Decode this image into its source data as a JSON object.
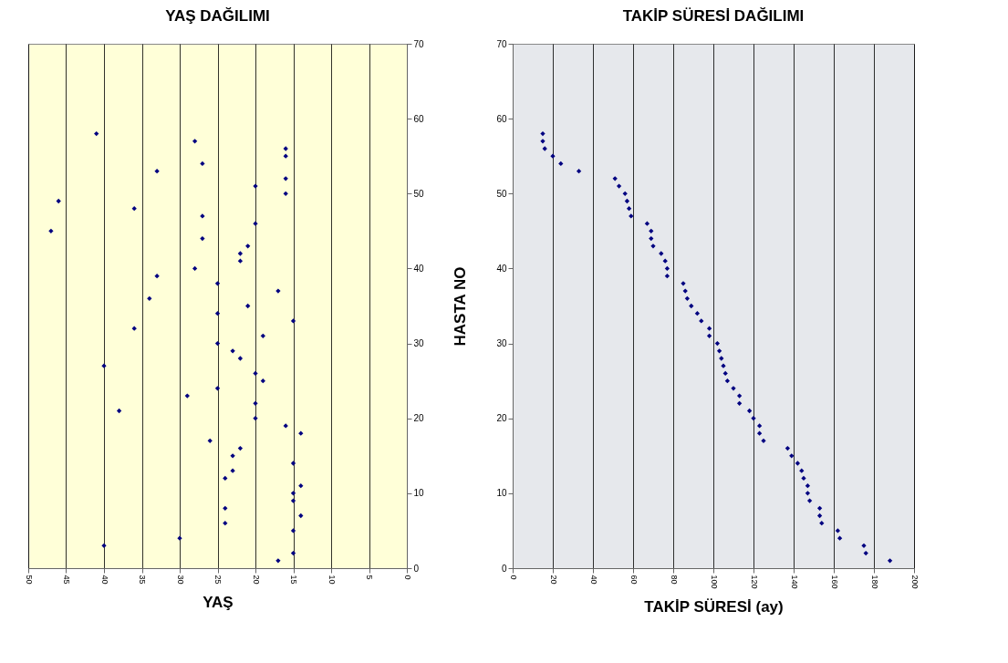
{
  "chart_data": [
    {
      "type": "scatter",
      "title": "YAŞ DAĞILIMI",
      "xlabel": "YAŞ",
      "color": "#000080",
      "marker": "diamond",
      "grid": "x",
      "x": [
        17,
        15,
        40,
        30,
        15,
        24,
        14,
        24,
        15,
        15,
        14,
        24,
        23,
        15,
        23,
        22,
        26,
        14,
        16,
        20,
        38,
        20,
        29,
        25,
        19,
        20,
        40,
        22,
        23,
        25,
        19,
        36,
        15,
        25,
        21,
        34,
        17,
        25,
        33,
        28,
        22,
        22,
        21,
        27,
        47,
        20,
        27,
        36,
        46,
        16,
        20,
        16,
        33,
        27,
        16,
        16,
        28,
        41
      ],
      "values": [
        1,
        2,
        3,
        4,
        5,
        6,
        7,
        8,
        9,
        10,
        11,
        12,
        13,
        14,
        15,
        16,
        17,
        18,
        19,
        20,
        21,
        22,
        23,
        24,
        25,
        26,
        27,
        28,
        29,
        30,
        31,
        32,
        33,
        34,
        35,
        36,
        37,
        38,
        39,
        40,
        41,
        42,
        43,
        44,
        45,
        46,
        47,
        48,
        49,
        50,
        51,
        52,
        53,
        54,
        55,
        56,
        57,
        58
      ],
      "xlim": [
        50,
        0
      ],
      "xticks": [
        50,
        45,
        40,
        35,
        30,
        25,
        20,
        15,
        10,
        5,
        0
      ],
      "ylim": [
        0,
        70
      ],
      "yticks": [
        0,
        10,
        20,
        30,
        40,
        50,
        60,
        70
      ]
    },
    {
      "type": "scatter",
      "title": "TAKİP SÜRESİ DAĞILIMI",
      "xlabel": "TAKİP SÜRESİ (ay)",
      "ylabel": "HASTA NO",
      "color": "#000080",
      "marker": "diamond",
      "grid": "x",
      "x": [
        188,
        176,
        175,
        163,
        162,
        154,
        153,
        153,
        148,
        147,
        147,
        145,
        144,
        142,
        139,
        137,
        125,
        123,
        123,
        120,
        118,
        113,
        113,
        110,
        107,
        106,
        105,
        104,
        103,
        102,
        98,
        98,
        94,
        92,
        89,
        87,
        86,
        85,
        77,
        77,
        76,
        74,
        70,
        69,
        69,
        67,
        59,
        58,
        57,
        56,
        53,
        51,
        33,
        24,
        20,
        16,
        15,
        15
      ],
      "values": [
        1,
        2,
        3,
        4,
        5,
        6,
        7,
        8,
        9,
        10,
        11,
        12,
        13,
        14,
        15,
        16,
        17,
        18,
        19,
        20,
        21,
        22,
        23,
        24,
        25,
        26,
        27,
        28,
        29,
        30,
        31,
        32,
        33,
        34,
        35,
        36,
        37,
        38,
        39,
        40,
        41,
        42,
        43,
        44,
        45,
        46,
        47,
        48,
        49,
        50,
        51,
        52,
        53,
        54,
        55,
        56,
        57,
        58
      ],
      "xlim": [
        0,
        200
      ],
      "xticks": [
        0,
        20,
        40,
        60,
        80,
        100,
        120,
        140,
        160,
        180,
        200
      ],
      "ylim": [
        0,
        70
      ],
      "yticks": [
        0,
        10,
        20,
        30,
        40,
        50,
        60,
        70
      ]
    }
  ]
}
